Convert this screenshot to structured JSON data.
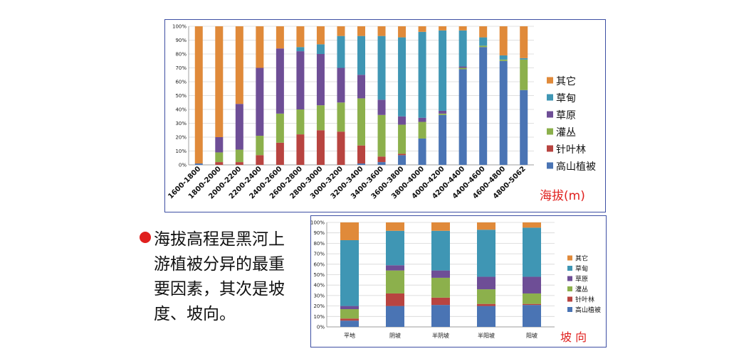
{
  "chart_data": [
    {
      "type": "bar",
      "stacked": true,
      "xlabel": "海拔(m)",
      "categories": [
        "1600-1800",
        "1800-2000",
        "2000-2200",
        "2200-2400",
        "2400-2600",
        "2600-2800",
        "2800-3000",
        "3000-3200",
        "3200-3400",
        "3400-3600",
        "3600-3800",
        "3800-4000",
        "4000-4200",
        "4200-4400",
        "4400-4600",
        "4600-4800",
        "4800-5062"
      ],
      "yticks": [
        "0%",
        "10%",
        "20%",
        "30%",
        "40%",
        "50%",
        "60%",
        "70%",
        "80%",
        "90%",
        "100%"
      ],
      "ylim": [
        0,
        100
      ],
      "legend_position": "right",
      "series": [
        {
          "name": "高山植被",
          "color": "#4a74b4",
          "values": [
            1,
            0,
            0,
            0,
            0,
            0,
            0,
            0,
            1,
            2,
            7,
            19,
            36,
            69,
            85,
            75,
            54
          ]
        },
        {
          "name": "针叶林",
          "color": "#b84440",
          "values": [
            0,
            2,
            2,
            7,
            16,
            22,
            25,
            24,
            13,
            4,
            1,
            0,
            0,
            0,
            0,
            0,
            0
          ]
        },
        {
          "name": "灌丛",
          "color": "#8cb04c",
          "values": [
            0,
            7,
            9,
            14,
            21,
            18,
            18,
            21,
            34,
            30,
            21,
            12,
            1,
            1,
            1,
            1,
            22
          ]
        },
        {
          "name": "草原",
          "color": "#6e4e96",
          "values": [
            0,
            11,
            33,
            49,
            47,
            42,
            37,
            25,
            17,
            11,
            6,
            3,
            2,
            1,
            0,
            0,
            0
          ]
        },
        {
          "name": "草甸",
          "color": "#3f96b4",
          "values": [
            0,
            0,
            0,
            0,
            0,
            3,
            7,
            23,
            28,
            46,
            57,
            62,
            58,
            26,
            6,
            3,
            1
          ]
        },
        {
          "name": "其它",
          "color": "#e08a3a",
          "values": [
            99,
            80,
            56,
            30,
            16,
            15,
            13,
            7,
            7,
            7,
            8,
            4,
            3,
            3,
            8,
            21,
            23
          ]
        }
      ]
    },
    {
      "type": "bar",
      "stacked": true,
      "xlabel": "坡 向",
      "categories": [
        "平地",
        "阴坡",
        "半阴坡",
        "半阳坡",
        "阳坡"
      ],
      "yticks": [
        "0%",
        "10%",
        "20%",
        "30%",
        "40%",
        "50%",
        "60%",
        "70%",
        "80%",
        "90%",
        "100%"
      ],
      "ylim": [
        0,
        100
      ],
      "legend_position": "right",
      "series": [
        {
          "name": "高山植被",
          "color": "#4a74b4",
          "values": [
            6,
            20,
            21,
            20,
            21
          ]
        },
        {
          "name": "针叶林",
          "color": "#b84440",
          "values": [
            2,
            12,
            7,
            2,
            1
          ]
        },
        {
          "name": "灌丛",
          "color": "#8cb04c",
          "values": [
            9,
            22,
            19,
            14,
            10
          ]
        },
        {
          "name": "草原",
          "color": "#6e4e96",
          "values": [
            3,
            5,
            7,
            12,
            16
          ]
        },
        {
          "name": "草甸",
          "color": "#3f96b4",
          "values": [
            63,
            33,
            38,
            45,
            47
          ]
        },
        {
          "name": "其它",
          "color": "#e08a3a",
          "values": [
            17,
            8,
            8,
            7,
            5
          ]
        }
      ]
    }
  ],
  "note": {
    "text": "海拔高程是黑河上游植被分异的最重要因素，其次是坡度、坡向。"
  }
}
